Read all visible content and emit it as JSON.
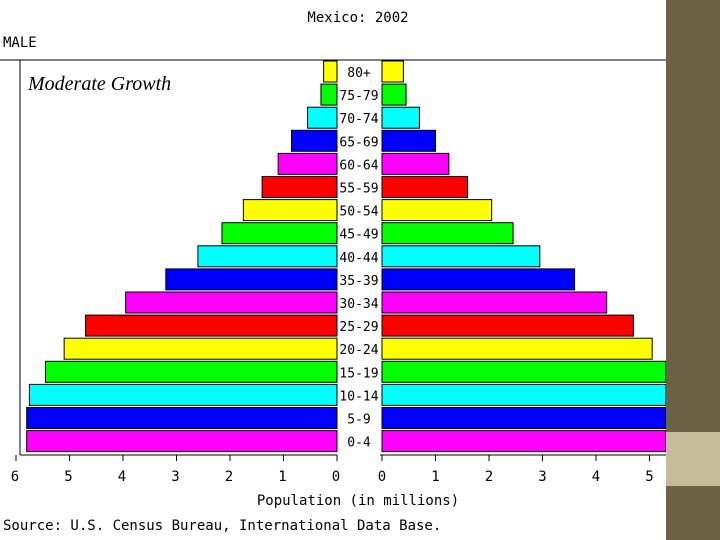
{
  "slide": {
    "annotation": "Moderate Growth",
    "panel_color": "#6b6144",
    "panel_swatch_color": "#c4bc9a"
  },
  "chart_data": {
    "type": "bar",
    "title": "Mexico: 2002",
    "left_label": "MALE",
    "xlabel": "Population (in millions)",
    "source": "Source: U.S. Census Bureau, International Data Base.",
    "categories": [
      "80+",
      "75-79",
      "70-74",
      "65-69",
      "60-64",
      "55-59",
      "50-54",
      "45-49",
      "40-44",
      "35-39",
      "30-34",
      "25-29",
      "20-24",
      "15-19",
      "10-14",
      "5-9",
      "0-4"
    ],
    "series": [
      {
        "name": "MALE",
        "values": [
          0.25,
          0.3,
          0.55,
          0.85,
          1.1,
          1.4,
          1.75,
          2.15,
          2.6,
          3.2,
          3.95,
          4.7,
          5.1,
          5.45,
          5.75,
          5.8,
          5.8
        ]
      },
      {
        "values": [
          0.4,
          0.45,
          0.7,
          1.0,
          1.25,
          1.6,
          2.05,
          2.45,
          2.95,
          3.6,
          4.2,
          4.7,
          5.05,
          5.35,
          5.7,
          5.75,
          5.75
        ]
      }
    ],
    "colors": [
      "#ffff00",
      "#00ff00",
      "#00ffff",
      "#0000ff",
      "#ff00ff",
      "#ff0000",
      "#ffff00",
      "#00ff00",
      "#00ffff",
      "#0000ff",
      "#ff00ff",
      "#ff0000",
      "#ffff00",
      "#00ff00",
      "#00ffff",
      "#0000ff",
      "#ff00ff"
    ],
    "left_ticks": [
      "6",
      "5",
      "4",
      "3",
      "2",
      "1",
      "0"
    ],
    "right_ticks": [
      "0",
      "1",
      "2",
      "3",
      "4",
      "5"
    ],
    "xlim_left": [
      0,
      6
    ],
    "xlim_right": [
      0,
      5
    ]
  }
}
